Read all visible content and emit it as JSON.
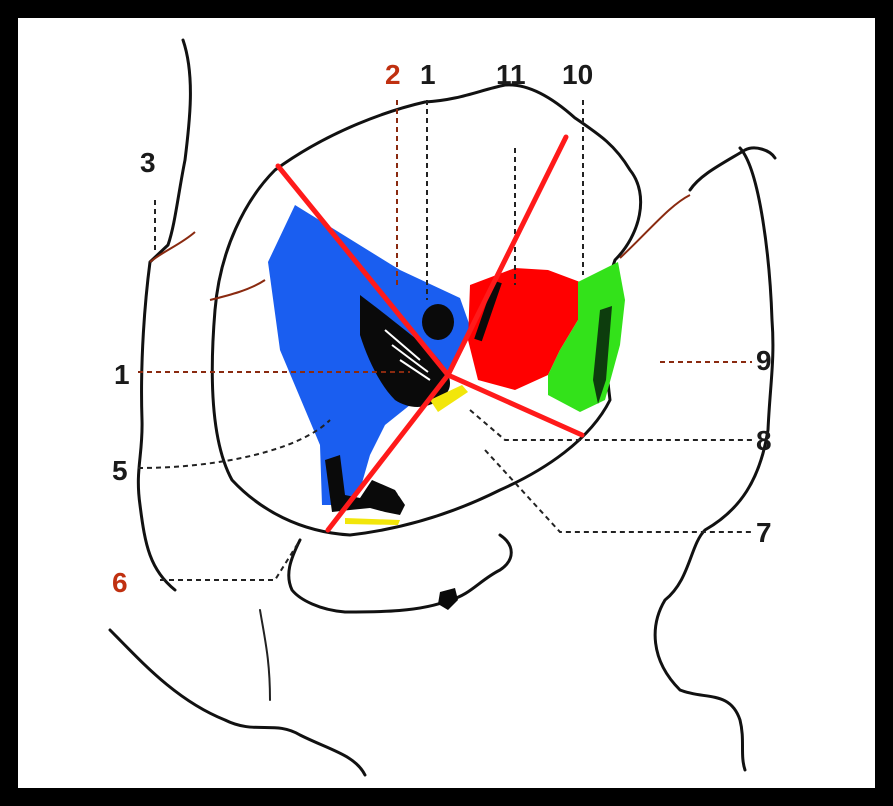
{
  "labels": {
    "l2": "2",
    "l1_top": "1",
    "l11": "11",
    "l10": "10",
    "l3": "3",
    "l1_left": "1",
    "l5": "5",
    "l6": "6",
    "l9": "9",
    "l8": "8",
    "l7": "7"
  },
  "colors": {
    "background": "#000000",
    "panel": "#ffffff",
    "region_blue": "#1a5ef0",
    "region_red": "#ff0000",
    "region_green": "#33e21a",
    "region_black": "#0a0a0a",
    "region_yellow": "#f2e60a",
    "overlay_lines": "#ff1a1a"
  }
}
